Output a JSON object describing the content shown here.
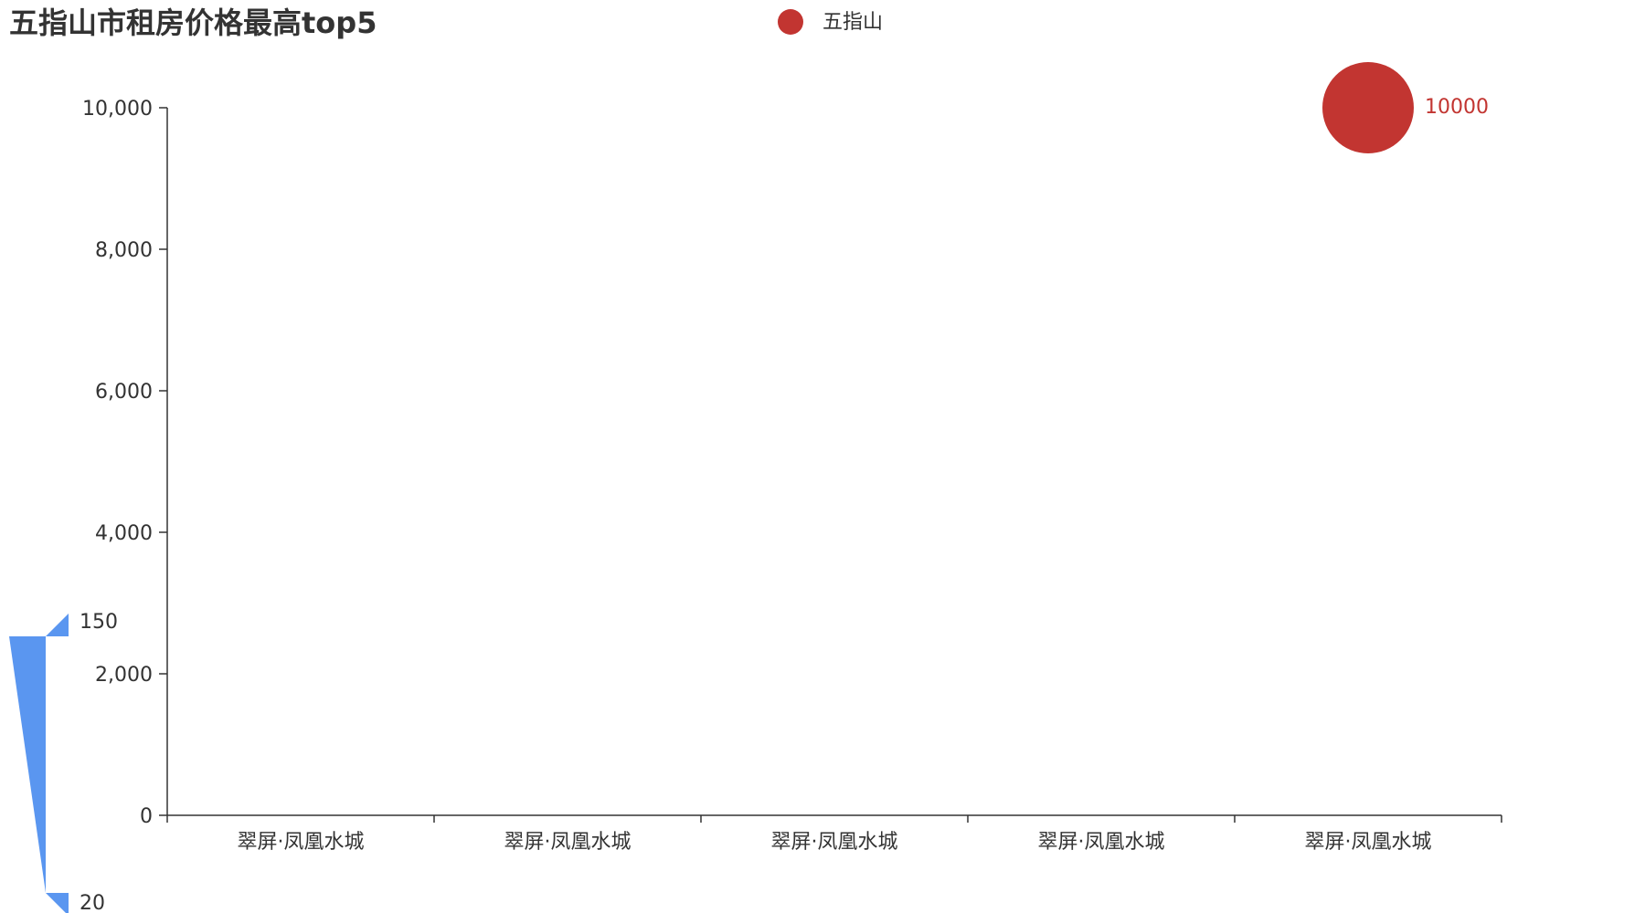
{
  "chart_data": {
    "type": "scatter",
    "title": "五指山市租房价格最高top5",
    "legend": {
      "position": "top-center",
      "items": [
        {
          "name": "五指山",
          "color": "#c23531"
        }
      ]
    },
    "categories": [
      "翠屏·凤凰水城",
      "翠屏·凤凰水城",
      "翠屏·凤凰水城",
      "翠屏·凤凰水城",
      "翠屏·凤凰水城"
    ],
    "series": [
      {
        "name": "五指山",
        "color": "#c23531",
        "points": [
          {
            "category_index": 4,
            "value": 10000,
            "label": "10000"
          }
        ]
      }
    ],
    "y_axis": {
      "min": 0,
      "max": 10000,
      "tick_labels": [
        "0",
        "2,000",
        "4,000",
        "6,000",
        "8,000",
        "10,000"
      ]
    },
    "visual_map": {
      "min": 20,
      "max": 150,
      "min_label": "20",
      "max_label": "150",
      "color": "#5a96f0",
      "position": "bottom-left"
    },
    "grid": false
  }
}
